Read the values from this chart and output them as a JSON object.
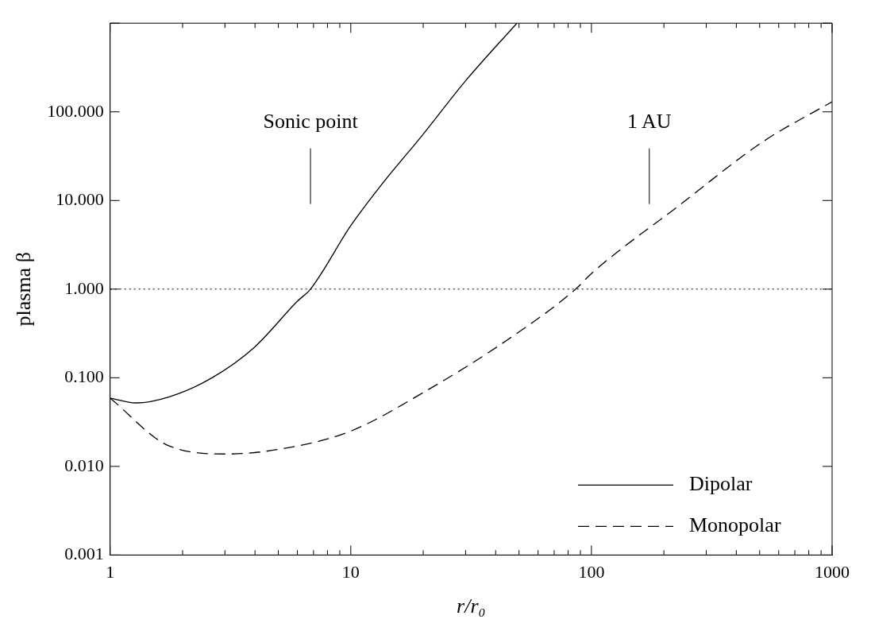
{
  "chart_data": {
    "type": "line",
    "xlabel": "r/r₀",
    "ylabel": "plasma β",
    "log": "xy",
    "grid": false,
    "legend": "bottom right",
    "marker": "none",
    "xlim": [
      1,
      1000
    ],
    "ylim": [
      0.001,
      1000
    ],
    "xticks": [
      1,
      {
        "value": 2,
        "label": null
      },
      {
        "value": 3,
        "label": null
      },
      {
        "value": 4,
        "label": null
      },
      {
        "value": 5,
        "label": null
      },
      {
        "value": 6,
        "label": null
      },
      {
        "value": 7,
        "label": null
      },
      {
        "value": 8,
        "label": null
      },
      {
        "value": 9,
        "label": null
      },
      10,
      {
        "value": 20,
        "label": null
      },
      {
        "value": 30,
        "label": null
      },
      {
        "value": 40,
        "label": null
      },
      {
        "value": 50,
        "label": null
      },
      {
        "value": 60,
        "label": null
      },
      {
        "value": 70,
        "label": null
      },
      {
        "value": 80,
        "label": null
      },
      {
        "value": 90,
        "label": null
      },
      100,
      {
        "value": 200,
        "label": null
      },
      {
        "value": 300,
        "label": null
      },
      {
        "value": 400,
        "label": null
      },
      {
        "value": 500,
        "label": null
      },
      {
        "value": 600,
        "label": null
      },
      {
        "value": 700,
        "label": null
      },
      {
        "value": 800,
        "label": null
      },
      {
        "value": 900,
        "label": null
      },
      1000
    ],
    "yticks": [
      {
        "value": 0.001,
        "label": "0.001"
      },
      {
        "value": 0.01,
        "label": "0.010"
      },
      {
        "value": 0.1,
        "label": "0.100"
      },
      {
        "value": 1,
        "label": "1.000"
      },
      {
        "value": 10,
        "label": "10.000"
      },
      {
        "value": 100,
        "label": "100.000"
      },
      {
        "value": 1000,
        "label": null
      }
    ],
    "series": [
      {
        "name": "Dipolar",
        "color": "#000000",
        "line_style": "solid",
        "x": [
          1,
          1.28,
          1.76,
          2.65,
          3.97,
          6.0,
          6.8,
          10,
          13.4,
          20,
          30,
          49
        ],
        "values": [
          0.059,
          0.052,
          0.061,
          0.1,
          0.22,
          0.73,
          1.0,
          5.2,
          15,
          56,
          224,
          1000
        ]
      },
      {
        "name": "Monopolar",
        "color": "#000000",
        "line_style": "dashed",
        "x": [
          1,
          1.76,
          3.1,
          6.0,
          10,
          20,
          45,
          86,
          100,
          229,
          516,
          1000
        ],
        "values": [
          0.059,
          0.017,
          0.0138,
          0.017,
          0.025,
          0.068,
          0.27,
          1.0,
          1.5,
          8.6,
          46,
          130
        ]
      }
    ],
    "ref_lines": [
      {
        "axis": "y",
        "value": 1,
        "line_style": "dotted",
        "color": "#000000"
      },
      {
        "axis": "x",
        "value": 6.8,
        "label": "Sonic point",
        "color": "#000000"
      },
      {
        "axis": "x",
        "value": 174,
        "label": "1 AU",
        "color": "#000000"
      }
    ]
  }
}
